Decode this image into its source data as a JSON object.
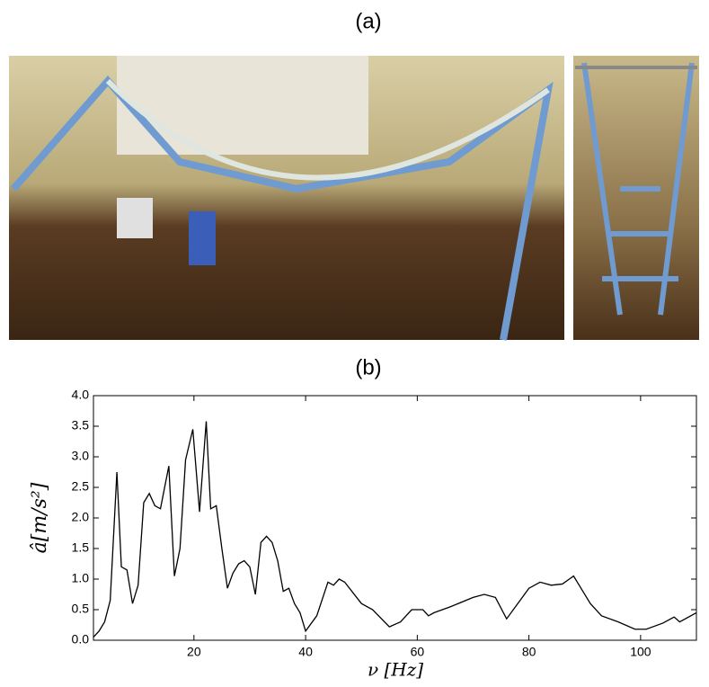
{
  "panel_a_label": "(a)",
  "panel_b_label": "(b)",
  "chart_data": {
    "type": "line",
    "ylabel": "â[m/s²]",
    "xlabel": "ν [Hz]",
    "color": "#000000",
    "grid": false,
    "x": [
      2,
      3,
      4,
      5,
      6.2,
      7,
      8,
      9,
      10,
      11,
      12,
      13,
      14,
      15.5,
      16.5,
      17.5,
      18.5,
      19.8,
      21,
      22.2,
      23,
      24,
      25,
      26,
      27,
      28,
      29,
      30,
      31,
      32,
      33,
      34,
      35,
      36,
      37,
      38,
      39,
      40,
      42,
      44,
      45,
      46,
      47,
      50,
      52,
      55,
      57,
      59,
      61,
      62,
      63,
      66,
      70,
      72,
      74,
      76,
      78,
      80,
      82,
      84,
      86,
      88,
      89,
      91,
      93,
      96,
      99,
      101,
      104,
      106,
      107,
      110
    ],
    "values": [
      0.05,
      0.15,
      0.3,
      0.65,
      2.75,
      1.2,
      1.15,
      0.6,
      0.9,
      2.25,
      2.4,
      2.2,
      2.15,
      2.85,
      1.05,
      1.5,
      2.95,
      3.45,
      2.1,
      3.58,
      2.15,
      2.2,
      1.5,
      0.85,
      1.1,
      1.25,
      1.3,
      1.2,
      0.75,
      1.6,
      1.7,
      1.6,
      1.3,
      0.8,
      0.85,
      0.6,
      0.45,
      0.15,
      0.4,
      0.95,
      0.9,
      1.0,
      0.95,
      0.6,
      0.5,
      0.22,
      0.3,
      0.5,
      0.5,
      0.4,
      0.45,
      0.55,
      0.7,
      0.75,
      0.7,
      0.35,
      0.6,
      0.85,
      0.95,
      0.9,
      0.92,
      1.05,
      0.9,
      0.6,
      0.4,
      0.3,
      0.18,
      0.18,
      0.28,
      0.38,
      0.3,
      0.45
    ],
    "xlim": [
      2,
      110
    ],
    "xticks": [
      20,
      40,
      60,
      80,
      100
    ],
    "ylim": [
      0,
      4
    ],
    "yticks": [
      {
        "value": 0,
        "label": "0.0"
      },
      0.5,
      {
        "value": 1,
        "label": "1.0"
      },
      1.5,
      {
        "value": 2,
        "label": "2.0"
      },
      2.5,
      {
        "value": 3,
        "label": "3.0"
      },
      3.5,
      {
        "value": 4,
        "label": "4.0"
      }
    ]
  }
}
